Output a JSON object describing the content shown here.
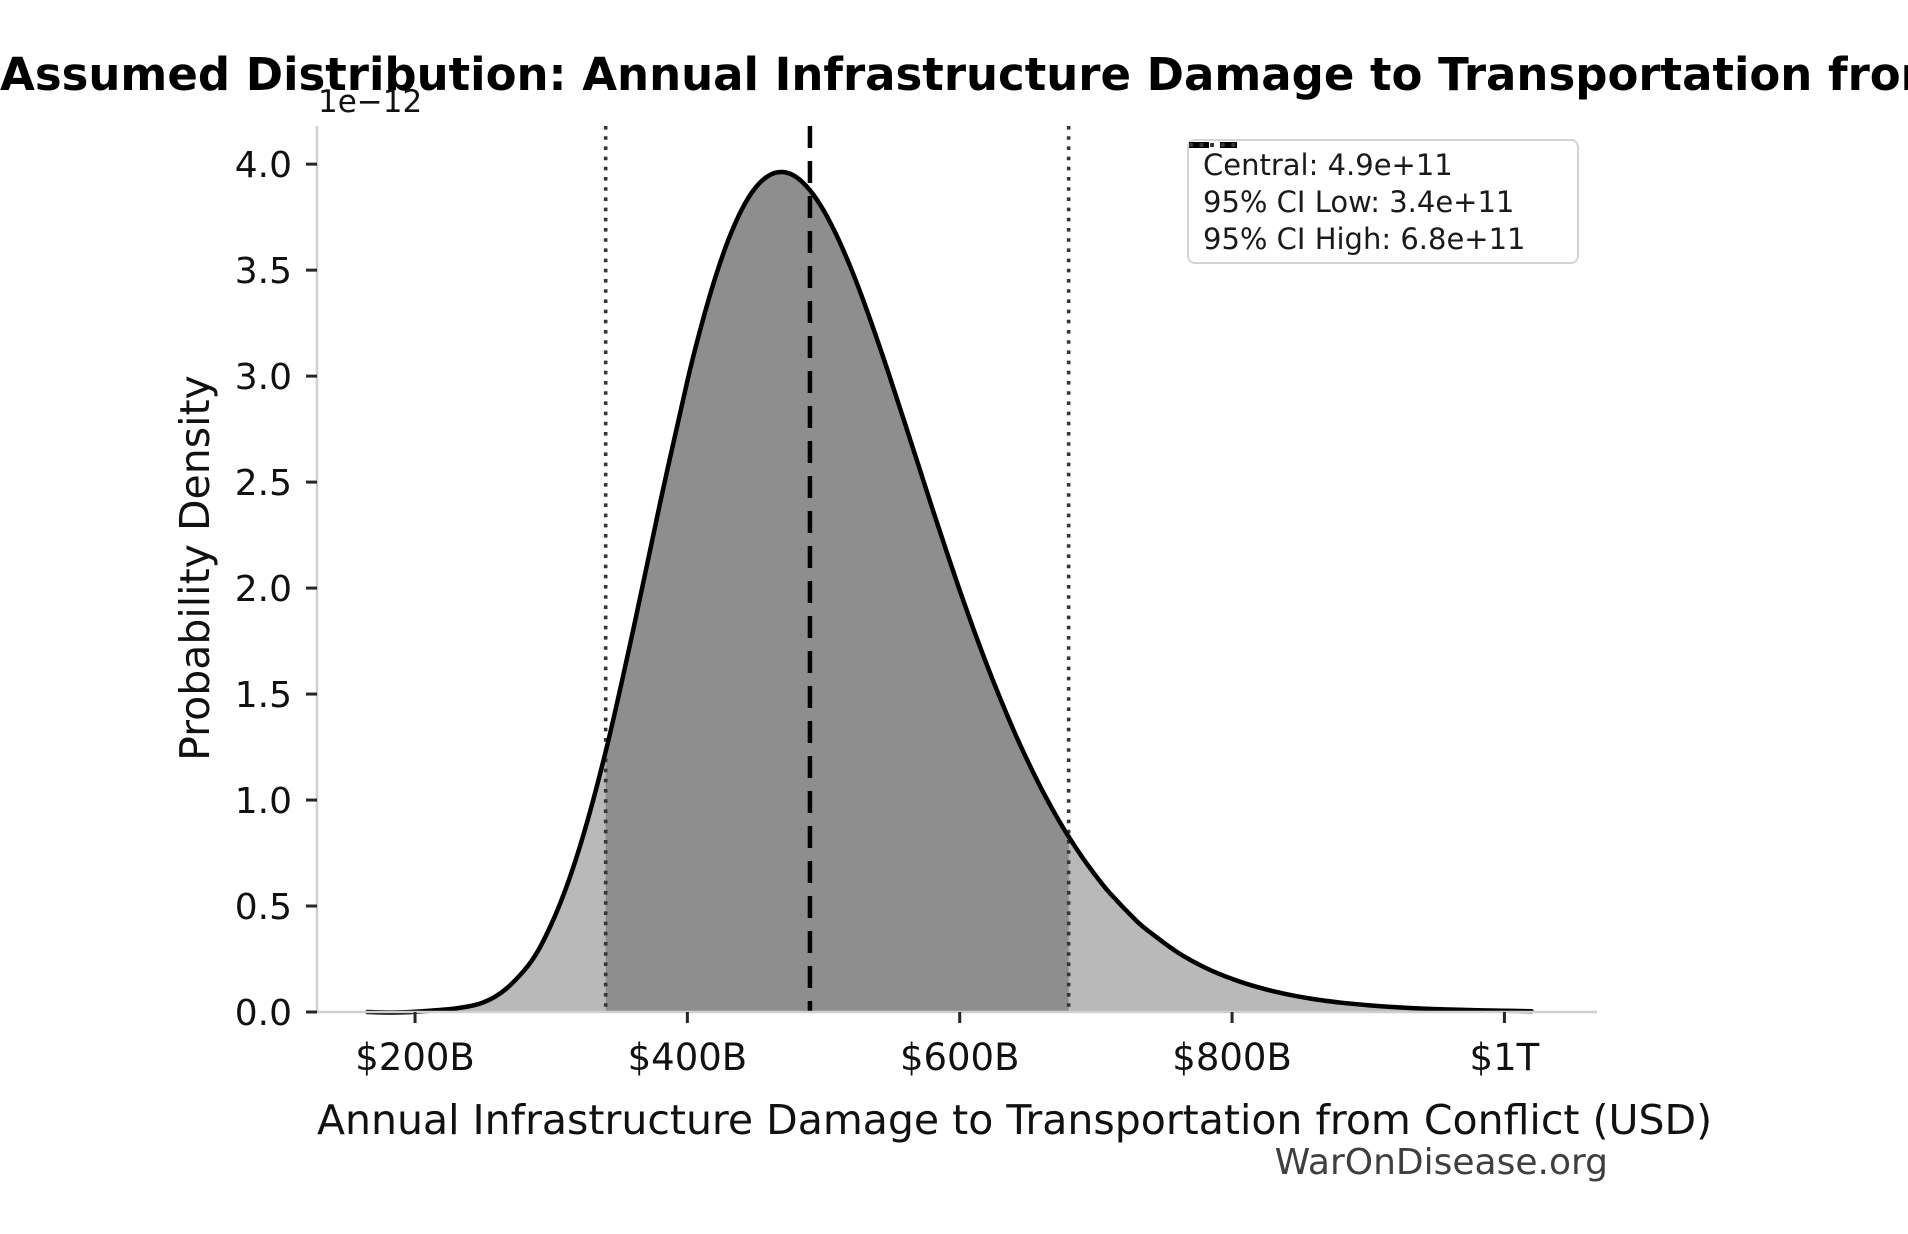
{
  "figure": {
    "title": "Assumed Distribution: Annual Infrastructure Damage to Transportation from Conflict",
    "watermark": "WarOnDisease.org"
  },
  "legend": {
    "items": [
      {
        "label": "Central: 4.9e+11",
        "style": "dashed"
      },
      {
        "label": "95% CI Low: 3.4e+11",
        "style": "dotted"
      },
      {
        "label": "95% CI High: 6.8e+11",
        "style": "dotted"
      }
    ]
  },
  "chart_data": {
    "type": "area",
    "title": "Assumed Distribution: Annual Infrastructure Damage to Transportation from Conflict",
    "xlabel": "Annual Infrastructure Damage to Transportation from Conflict (USD)",
    "ylabel": "Probability Density",
    "y_axis_offset_text": "1e−12",
    "x_units": "billions_usd",
    "y_units": "1e-12_per_usd",
    "grid": false,
    "legend_position": "upper right",
    "xlim_billions": [
      128,
      1068
    ],
    "ylim_1e12": [
      0,
      4.18
    ],
    "x_ticks": [
      {
        "value": 200,
        "label": "$200B"
      },
      {
        "value": 400,
        "label": "$400B"
      },
      {
        "value": 600,
        "label": "$600B"
      },
      {
        "value": 800,
        "label": "$800B"
      },
      {
        "value": 1000,
        "label": "$1T"
      }
    ],
    "y_ticks": [
      {
        "value": 0.0,
        "label": "0.0"
      },
      {
        "value": 0.5,
        "label": "0.5"
      },
      {
        "value": 1.0,
        "label": "1.0"
      },
      {
        "value": 1.5,
        "label": "1.5"
      },
      {
        "value": 2.0,
        "label": "2.0"
      },
      {
        "value": 2.5,
        "label": "2.5"
      },
      {
        "value": 3.0,
        "label": "3.0"
      },
      {
        "value": 3.5,
        "label": "3.5"
      },
      {
        "value": 4.0,
        "label": "4.0"
      }
    ],
    "distribution": "lognormal",
    "central": {
      "value_billions": 490,
      "value_text": "4.9e+11",
      "line_style": "dashed"
    },
    "ci_low": {
      "value_billions": 340,
      "value_text": "3.4e+11",
      "line_style": "dotted"
    },
    "ci_high": {
      "value_billions": 680,
      "value_text": "6.8e+11",
      "line_style": "dotted"
    },
    "curve": {
      "x": [
        165,
        200,
        250,
        280,
        300,
        320,
        340,
        360,
        380,
        400,
        410,
        420,
        430,
        440,
        450,
        460,
        470,
        480,
        490,
        500,
        510,
        520,
        530,
        540,
        550,
        560,
        570,
        580,
        590,
        600,
        610,
        620,
        630,
        640,
        650,
        660,
        670,
        680,
        690,
        700,
        710,
        730,
        740,
        760,
        780,
        800,
        820,
        840,
        860,
        880,
        900,
        920,
        940,
        960,
        980,
        1000,
        1020
      ],
      "y": [
        0.0,
        0.001,
        0.045,
        0.195,
        0.413,
        0.758,
        1.229,
        1.796,
        2.402,
        2.978,
        3.232,
        3.455,
        3.641,
        3.787,
        3.889,
        3.947,
        3.963,
        3.939,
        3.877,
        3.782,
        3.658,
        3.511,
        3.343,
        3.161,
        2.97,
        2.772,
        2.573,
        2.373,
        2.179,
        1.989,
        1.809,
        1.636,
        1.475,
        1.323,
        1.183,
        1.053,
        0.935,
        0.827,
        0.73,
        0.642,
        0.563,
        0.429,
        0.375,
        0.281,
        0.21,
        0.156,
        0.115,
        0.084,
        0.061,
        0.044,
        0.032,
        0.023,
        0.016,
        0.012,
        0.008,
        0.006,
        0.004
      ]
    },
    "colors": {
      "curve": "#000000",
      "fill": "#b9b9b9",
      "ci_fill": "#8e8e8e",
      "central_line": "#000000",
      "ci_line": "#363636",
      "spine": "#cfcfcf",
      "tick": "#262626",
      "tick_label": "#111111",
      "legend_border": "#d4d4d4"
    }
  }
}
